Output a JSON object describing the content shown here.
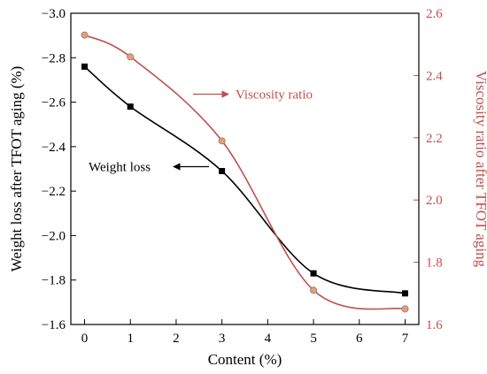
{
  "chart_data": {
    "type": "line",
    "xlabel": "Content (%)",
    "ylabel_left": "Weight loss after TFOT aging (%)",
    "ylabel_right": "Viscosity ratio after TFOT aging",
    "x_ticks": [
      "0",
      "1",
      "2",
      "3",
      "4",
      "5",
      "6",
      "7"
    ],
    "xlim": [
      -0.3,
      7.3
    ],
    "y_left_ticks": [
      "-3.0",
      "-2.8",
      "-2.6",
      "-2.4",
      "-2.2",
      "-2.0",
      "-1.8",
      "-1.6"
    ],
    "y_left_lim": [
      -3.0,
      -1.6
    ],
    "y_left_reversed": true,
    "y_right_ticks": [
      "2.6",
      "2.4",
      "2.2",
      "2.0",
      "1.8",
      "1.6"
    ],
    "y_right_lim": [
      1.6,
      2.6
    ],
    "series": [
      {
        "name": "Weight loss",
        "axis": "left",
        "color": "#000000",
        "marker": "square",
        "x": [
          0,
          1,
          3,
          5,
          7
        ],
        "values": [
          -2.76,
          -2.58,
          -2.29,
          -1.83,
          -1.74
        ]
      },
      {
        "name": "Viscosity ratio",
        "axis": "right",
        "color": "#c0504d",
        "marker": "circle",
        "x": [
          0,
          1,
          3,
          5,
          7
        ],
        "values": [
          2.53,
          2.46,
          2.19,
          1.71,
          1.65
        ]
      }
    ],
    "annotations": [
      {
        "text": "Weight loss",
        "series": 0,
        "arrow": "left-axis"
      },
      {
        "text": "Viscosity ratio",
        "series": 1,
        "arrow": "right-axis"
      }
    ]
  }
}
